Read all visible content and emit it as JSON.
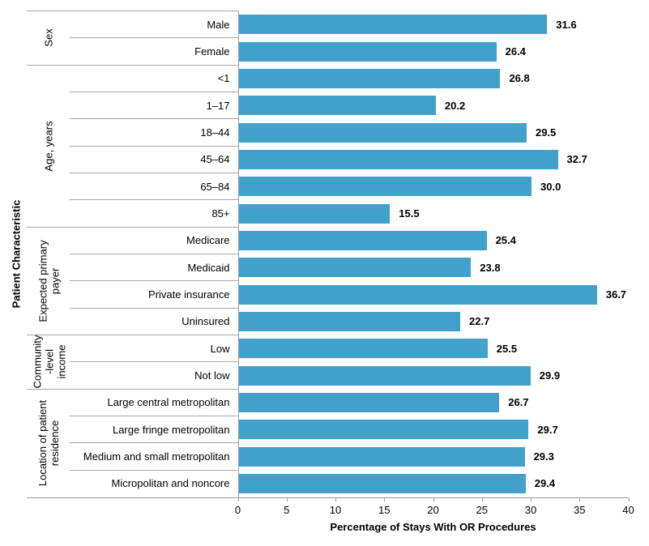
{
  "chart_data": {
    "type": "bar",
    "orientation": "horizontal",
    "title": "",
    "xlabel": "Percentage of Stays With OR Procedures",
    "ylabel": "Patient Characteristic",
    "xlim": [
      0,
      40
    ],
    "xticks": [
      "0",
      "5",
      "10",
      "15",
      "20",
      "25",
      "30",
      "35",
      "40"
    ],
    "grid": false,
    "legend": null,
    "colors": {
      "bar": "#42a1ca",
      "separator_line": "#a6a6a6",
      "axis_line": "#9a9a9a",
      "text": "#000000"
    },
    "groups": [
      {
        "label_lines": [
          "Sex"
        ],
        "items": [
          {
            "label": "Male",
            "value": 31.6,
            "value_display": "31.6"
          },
          {
            "label": "Female",
            "value": 26.4,
            "value_display": "26.4"
          }
        ]
      },
      {
        "label_lines": [
          "Age, years"
        ],
        "items": [
          {
            "label": "<1",
            "value": 26.8,
            "value_display": "26.8"
          },
          {
            "label": "1–17",
            "value": 20.2,
            "value_display": "20.2"
          },
          {
            "label": "18–44",
            "value": 29.5,
            "value_display": "29.5"
          },
          {
            "label": "45–64",
            "value": 32.7,
            "value_display": "32.7"
          },
          {
            "label": "65–84",
            "value": 30.0,
            "value_display": "30.0"
          },
          {
            "label": "85+",
            "value": 15.5,
            "value_display": "15.5"
          }
        ]
      },
      {
        "label_lines": [
          "Expected primary",
          "payer"
        ],
        "items": [
          {
            "label": "Medicare",
            "value": 25.4,
            "value_display": "25.4"
          },
          {
            "label": "Medicaid",
            "value": 23.8,
            "value_display": "23.8"
          },
          {
            "label": "Private insurance",
            "value": 36.7,
            "value_display": "36.7"
          },
          {
            "label": "Uninsured",
            "value": 22.7,
            "value_display": "22.7"
          }
        ]
      },
      {
        "label_lines": [
          "Community",
          "-level",
          "income"
        ],
        "items": [
          {
            "label": "Low",
            "value": 25.5,
            "value_display": "25.5"
          },
          {
            "label": "Not low",
            "value": 29.9,
            "value_display": "29.9"
          }
        ]
      },
      {
        "label_lines": [
          "Location of patient",
          "residence"
        ],
        "items": [
          {
            "label": "Large central metropolitan",
            "value": 26.7,
            "value_display": "26.7"
          },
          {
            "label": "Large fringe metropolitan",
            "value": 29.7,
            "value_display": "29.7"
          },
          {
            "label": "Medium and small metropolitan",
            "value": 29.3,
            "value_display": "29.3"
          },
          {
            "label": "Micropolitan and noncore",
            "value": 29.4,
            "value_display": "29.4"
          }
        ]
      }
    ]
  }
}
